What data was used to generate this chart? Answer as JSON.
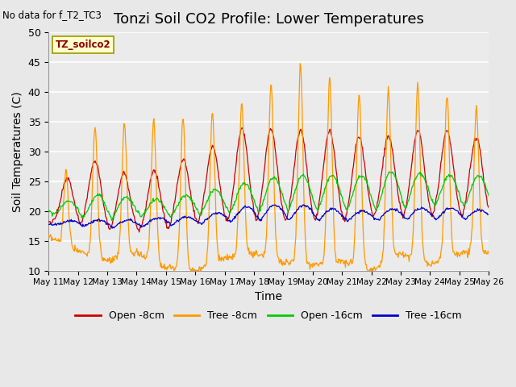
{
  "title": "Tonzi Soil CO2 Profile: Lower Temperatures",
  "subtitle": "No data for f_T2_TC3",
  "ylabel": "Soil Temperatures (C)",
  "xlabel": "Time",
  "ylim": [
    10,
    50
  ],
  "background_color": "#e8e8e8",
  "plot_bg_color": "#ebebeb",
  "grid_color": "white",
  "title_fontsize": 13,
  "label_fontsize": 10,
  "tick_fontsize": 9,
  "legend_label": "TZ_soilco2",
  "series": {
    "open_8cm": {
      "color": "#cc0000",
      "label": "Open -8cm"
    },
    "tree_8cm": {
      "color": "#ff9900",
      "label": "Tree -8cm"
    },
    "open_16cm": {
      "color": "#00cc00",
      "label": "Open -16cm"
    },
    "tree_16cm": {
      "color": "#0000cc",
      "label": "Tree -16cm"
    }
  },
  "x_tick_labels": [
    "May 11",
    "May 12",
    "May 13",
    "May 14",
    "May 15",
    "May 16",
    "May 17",
    "May 18",
    "May 19",
    "May 20",
    "May 21",
    "May 22",
    "May 23",
    "May 24",
    "May 25",
    "May 26"
  ],
  "yticks": [
    10,
    15,
    20,
    25,
    30,
    35,
    40,
    45,
    50
  ]
}
